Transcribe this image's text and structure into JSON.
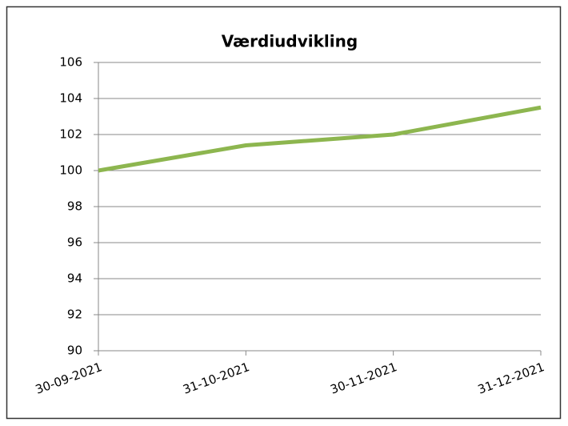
{
  "chart_data": {
    "type": "line",
    "title": "Værdiudvikling",
    "categories": [
      "30-09-2021",
      "31-10-2021",
      "30-11-2021",
      "31-12-2021"
    ],
    "series": [
      {
        "color": "#8db64f",
        "values": [
          100,
          101.4,
          102,
          103.5
        ]
      }
    ],
    "ylim": [
      90,
      106
    ],
    "yticks": [
      90,
      92,
      94,
      96,
      98,
      100,
      102,
      104,
      106
    ],
    "grid": true
  }
}
